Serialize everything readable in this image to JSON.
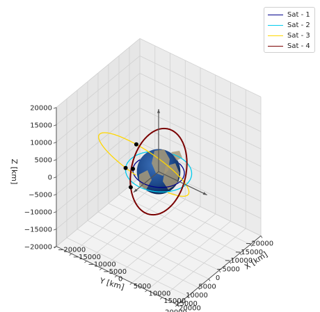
{
  "chart_data": {
    "type": "line",
    "projection": "3d",
    "xlabel": "X [km]",
    "ylabel": "Y [km]",
    "zlabel": "Z [km]",
    "xlim": [
      -20000,
      20000
    ],
    "ylim": [
      -20000,
      20000
    ],
    "zlim": [
      -20000,
      20000
    ],
    "x_ticks": [
      -20000,
      -15000,
      -10000,
      -5000,
      0,
      5000,
      10000,
      15000,
      20000
    ],
    "y_ticks": [
      -20000,
      -15000,
      -10000,
      -5000,
      0,
      5000,
      10000,
      15000,
      20000
    ],
    "z_ticks": [
      -20000,
      -15000,
      -10000,
      -5000,
      0,
      5000,
      10000,
      15000,
      20000
    ],
    "x_tick_labels": [
      "−20000",
      "−15000",
      "−10000",
      "−5000",
      "0",
      "5000",
      "10000",
      "15000",
      "20000"
    ],
    "y_tick_labels": [
      "−20000",
      "−15000",
      "−10000",
      "−5000",
      "0",
      "5000",
      "10000",
      "15000",
      "20000"
    ],
    "z_tick_labels": [
      "−20000",
      "−15000",
      "−10000",
      "−5000",
      "0",
      "5000",
      "10000",
      "15000",
      "20000"
    ],
    "grid": true,
    "legend_position": "top-right",
    "earth_radius_km": 6371,
    "series": [
      {
        "name": "Sat - 1",
        "color": "#00008b",
        "semi_major_km": 7000,
        "inclination_deg": 0,
        "raan_deg": 0,
        "eccentricity": 0.0,
        "marker_anomaly_deg": 150
      },
      {
        "name": "Sat - 2",
        "color": "#00ccee",
        "semi_major_km": 9000,
        "inclination_deg": 0,
        "raan_deg": 0,
        "eccentricity": 0.0,
        "marker_anomaly_deg": 150
      },
      {
        "name": "Sat - 3",
        "color": "#ffd700",
        "semi_major_km": 14000,
        "inclination_deg": 55,
        "raan_deg": 0,
        "eccentricity": 0.35,
        "marker_anomaly_deg": 100
      },
      {
        "name": "Sat - 4",
        "color": "#7a0000",
        "semi_major_km": 10800,
        "inclination_deg": 80,
        "raan_deg": 100,
        "eccentricity": 0.0,
        "marker_anomaly_deg": 0
      }
    ]
  }
}
